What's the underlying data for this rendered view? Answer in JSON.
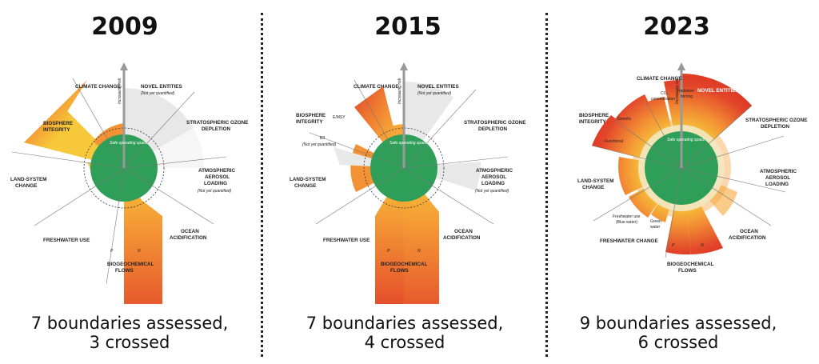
{
  "panels": [
    {
      "year": "2009",
      "caption_line1": "7 boundaries assessed,",
      "caption_line2": "3 crossed",
      "labels": {
        "climate": "CLIMATE CHANGE",
        "novel": "NOVEL ENTITIES",
        "novel_note": "(Not yet quantified)",
        "ozone_1": "STRATOSPHERIC OZONE",
        "ozone_2": "DEPLETION",
        "aerosol_1": "ATMOSPHERIC",
        "aerosol_2": "AEROSOL",
        "aerosol_3": "LOADING",
        "aerosol_note": "(Not yet quantified)",
        "ocean_1": "OCEAN",
        "ocean_2": "ACIDIFICATION",
        "biogeo_1": "BIOGEOCHEMICAL",
        "biogeo_2": "FLOWS",
        "p": "P",
        "n": "N",
        "fresh": "FRESHWATER USE",
        "land_1": "LAND-SYSTEM",
        "land_2": "CHANGE",
        "bio_1": "BIOSPHERE",
        "bio_2": "INTEGRITY",
        "safe": "Safe operating space",
        "risk": "Increasing risk"
      }
    },
    {
      "year": "2015",
      "caption_line1": "7 boundaries assessed,",
      "caption_line2": "4 crossed",
      "labels": {
        "climate": "CLIMATE CHANGE",
        "novel": "NOVEL ENTITIES",
        "novel_note": "(Not yet quantified)",
        "ozone_1": "STRATOSPHERIC OZONE",
        "ozone_2": "DEPLETION",
        "aerosol_1": "ATMOSPHERIC",
        "aerosol_2": "AEROSOL",
        "aerosol_3": "LOADING",
        "aerosol_note": "(Not yet quantified)",
        "ocean_1": "OCEAN",
        "ocean_2": "ACIDIFICATION",
        "biogeo_1": "BIOGEOCHEMICAL",
        "biogeo_2": "FLOWS",
        "p": "P",
        "n": "N",
        "fresh": "FRESHWATER USE",
        "land_1": "LAND-SYSTEM",
        "land_2": "CHANGE",
        "bio_1": "BIOSPHERE",
        "bio_2": "INTEGRITY",
        "emsy": "E/MSY",
        "bii": "BII",
        "bii_note": "(Not yet quantified)",
        "safe": "Safe operating space",
        "risk": "Increasing risk"
      }
    },
    {
      "year": "2023",
      "caption_line1": "9 boundaries assessed,",
      "caption_line2": "6 crossed",
      "labels": {
        "climate": "CLIMATE CHANGE",
        "novel": "NOVEL ENTITIES",
        "co2_1": "CO₂",
        "co2_2": "concentration",
        "rad_1": "Radiative",
        "rad_2": "forcing",
        "ozone_1": "STRATOSPHERIC OZONE",
        "ozone_2": "DEPLETION",
        "aerosol_1": "ATMOSPHERIC",
        "aerosol_2": "AEROSOL",
        "aerosol_3": "LOADING",
        "ocean_1": "OCEAN",
        "ocean_2": "ACIDIFICATION",
        "biogeo_1": "BIOGEOCHEMICAL",
        "biogeo_2": "FLOWS",
        "p": "P",
        "n": "N",
        "fresh": "FRESHWATER CHANGE",
        "blue_1": "Freshwater use",
        "blue_2": "(Blue water)",
        "green_1": "Green",
        "green_2": "water",
        "land_1": "LAND-SYSTEM",
        "land_2": "CHANGE",
        "bio_1": "BIOSPHERE",
        "bio_2": "INTEGRITY",
        "genetic": "Genetic",
        "functional": "Functional",
        "safe": "Safe operating space",
        "risk": "Increasing risk"
      }
    }
  ],
  "colors": {
    "safe": "#2e9e58",
    "risk_low": "#f7c83a",
    "risk_mid": "#f39234",
    "risk_high": "#d9301f",
    "unquantified": "#e4e4e4",
    "text": "#111111"
  }
}
